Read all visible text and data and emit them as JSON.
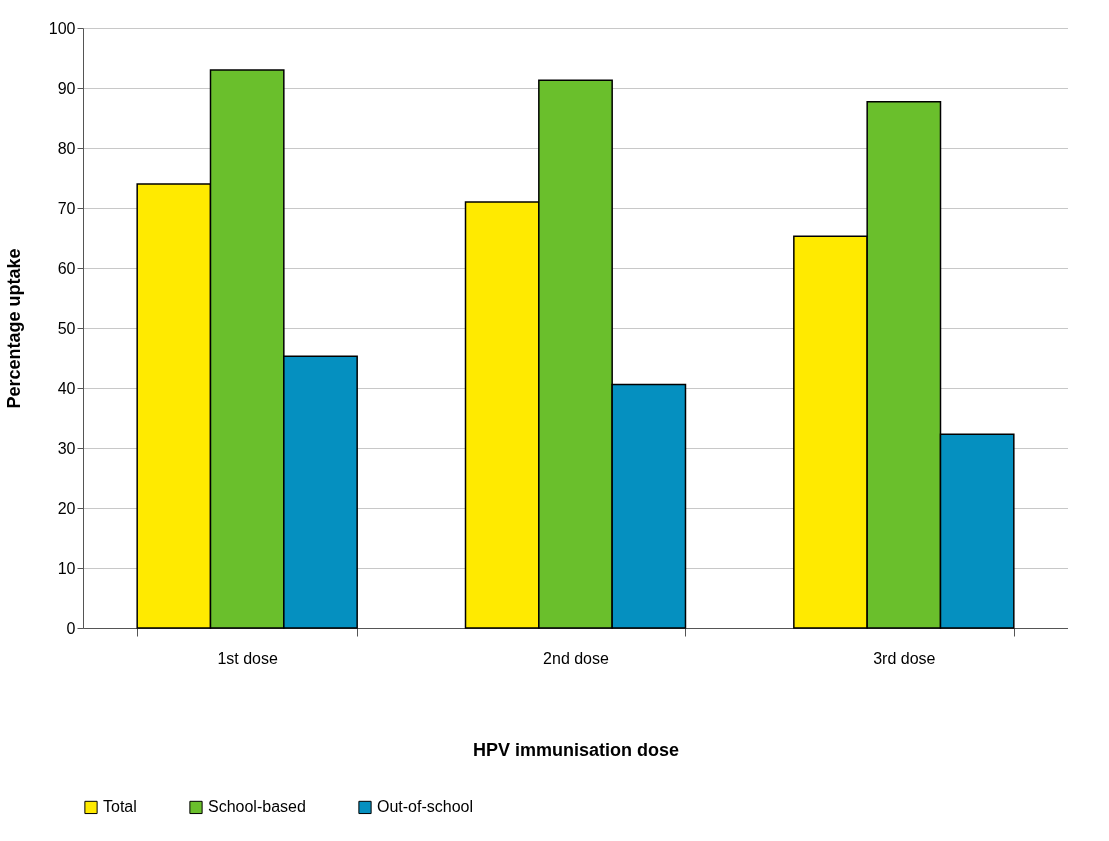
{
  "chart_data": {
    "type": "bar",
    "xlabel": "HPV immunisation dose",
    "ylabel": "Percentage uptake",
    "categories": [
      "1st dose",
      "2nd dose",
      "3rd dose"
    ],
    "series": [
      {
        "name": "Total",
        "color": "#ffea00",
        "values": [
          74,
          71,
          65.3
        ]
      },
      {
        "name": "School-based",
        "color": "#6abf2c",
        "values": [
          93,
          91.3,
          87.7
        ]
      },
      {
        "name": "Out-of-school",
        "color": "#0590c0",
        "values": [
          45.3,
          40.6,
          32.3
        ]
      }
    ],
    "ylim": [
      0,
      100
    ],
    "yticks": [
      0,
      10,
      20,
      30,
      40,
      50,
      60,
      70,
      80,
      90,
      100
    ],
    "grid": "y",
    "legend": "bottom"
  }
}
